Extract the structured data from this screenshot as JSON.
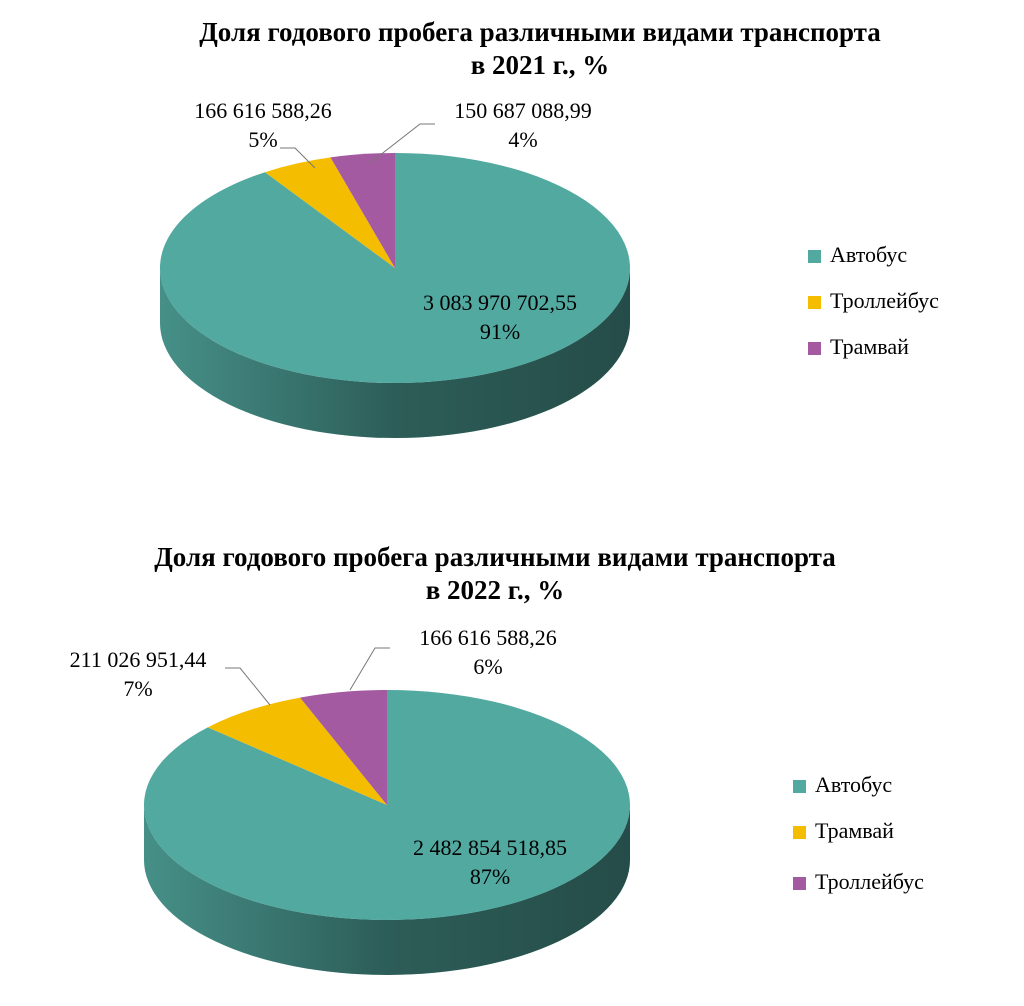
{
  "chart_data": [
    {
      "type": "pie",
      "title": [
        "Доля годового пробега различными видами транспорта",
        "в 2021 г., %"
      ],
      "categories": [
        "Автобус",
        "Троллейбус",
        "Трамвай"
      ],
      "values": [
        3083970702.55,
        166616588.26,
        150687088.99
      ],
      "value_labels": [
        "3 083 970 702,55",
        "166 616 588,26",
        "150 687 088,99"
      ],
      "percents": [
        91,
        5,
        4
      ],
      "percent_labels": [
        "91%",
        "5%",
        "4%"
      ],
      "colors": [
        "#52a9a0",
        "#f5bd00",
        "#a45aa0"
      ],
      "legend": "right"
    },
    {
      "type": "pie",
      "title": [
        "Доля годового пробега различными видами транспорта",
        "в 2022 г., %"
      ],
      "categories": [
        "Автобус",
        "Трамвай",
        "Троллейбус"
      ],
      "values": [
        2482854518.85,
        211026951.44,
        166616588.26
      ],
      "value_labels": [
        "2 482 854 518,85",
        "211 026 951,44",
        "166 616 588,26"
      ],
      "percents": [
        87,
        7,
        6
      ],
      "percent_labels": [
        "87%",
        "7%",
        "6%"
      ],
      "colors": [
        "#52a9a0",
        "#f5bd00",
        "#a45aa0"
      ],
      "legend": "right"
    }
  ]
}
